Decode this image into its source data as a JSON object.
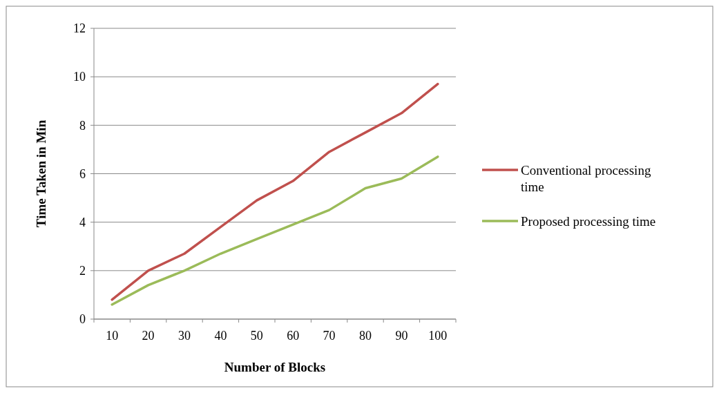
{
  "chart_data": {
    "type": "line",
    "xlabel": "Number  of Blocks",
    "ylabel": "Time Taken  in Min",
    "categories": [
      "10",
      "20",
      "30",
      "40",
      "50",
      "60",
      "70",
      "80",
      "90",
      "100"
    ],
    "series": [
      {
        "name": "Conventional processing time",
        "color": "#c0504d",
        "values": [
          0.8,
          2.0,
          2.7,
          3.8,
          4.9,
          5.7,
          6.9,
          7.7,
          8.5,
          9.7
        ]
      },
      {
        "name": "Proposed processing time",
        "color": "#9bbb59",
        "values": [
          0.6,
          1.4,
          2.0,
          2.7,
          3.3,
          3.9,
          4.5,
          5.4,
          5.8,
          6.7
        ]
      }
    ],
    "ylim": [
      0,
      12
    ],
    "yticks": [
      0,
      2,
      4,
      6,
      8,
      10,
      12
    ],
    "grid": "y",
    "legend": "right",
    "marker": "none",
    "line_style": "solid"
  }
}
